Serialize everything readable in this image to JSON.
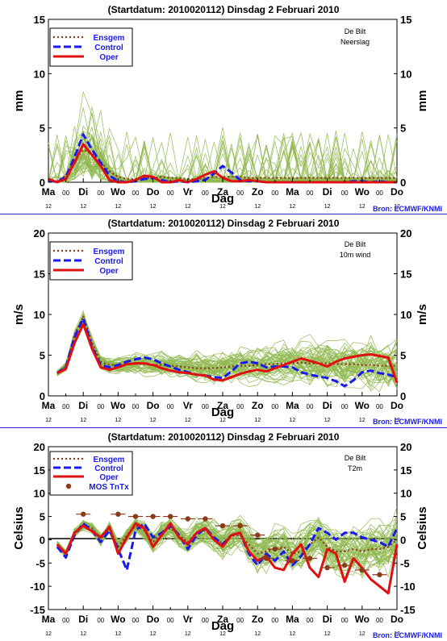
{
  "colors": {
    "ensemble": "#8fb84f",
    "ensgem": "#8b3a1a",
    "control": "#1a1aee",
    "oper": "#e01010",
    "mos": "#8b3a1a",
    "zero_line": "#000000",
    "divider": "#2a2acc",
    "source": "#1a1aee"
  },
  "shared": {
    "title": "(Startdatum: 2010020112)   Dinsdag    2 Februari  2010",
    "station": "De Bilt",
    "source": "Bron: ECMWF/KNMI",
    "xlabel": "Dag",
    "day_labels": [
      "Ma",
      "Di",
      "Wo",
      "Do",
      "Vr",
      "Za",
      "Zo",
      "Ma",
      "Di",
      "Wo",
      "Do"
    ],
    "half_day_labels": [
      "00",
      "00",
      "00",
      "00",
      "00",
      "00",
      "00",
      "00",
      "00",
      "00"
    ],
    "hour_labels": [
      "12",
      "12",
      "12",
      "12",
      "12",
      "12",
      "12",
      "12",
      "12",
      "12",
      "12"
    ]
  },
  "chart_data": [
    {
      "type": "line",
      "variable": "Neerslag",
      "ylabel": "mm",
      "ylim": [
        0,
        15
      ],
      "yticks": [
        0,
        5,
        10,
        15
      ],
      "xlim": [
        0,
        20
      ],
      "legend": [
        "Ensgem",
        "Control",
        "Oper"
      ],
      "legend_placement": "top-left",
      "series": [
        {
          "name": "Ensgem",
          "style": "dotted",
          "x": [
            0,
            0.5,
            1,
            1.5,
            2,
            2.5,
            3,
            3.5,
            4,
            4.5,
            5,
            5.5,
            6,
            6.5,
            7,
            7.5,
            8,
            8.5,
            9,
            9.5,
            10,
            10.5,
            11,
            11.5,
            12,
            12.5,
            13,
            13.5,
            14,
            14.5,
            15,
            15.5,
            16,
            16.5,
            17,
            17.5,
            18,
            18.5,
            19,
            19.5,
            20
          ],
          "values": [
            0.3,
            0.1,
            0.6,
            2.0,
            3.0,
            2.6,
            1.9,
            1.0,
            0.5,
            0.3,
            0.3,
            0.4,
            0.4,
            0.5,
            0.4,
            0.4,
            0.3,
            0.3,
            0.4,
            0.5,
            0.5,
            0.5,
            0.5,
            0.4,
            0.4,
            0.4,
            0.4,
            0.4,
            0.4,
            0.4,
            0.4,
            0.4,
            0.4,
            0.4,
            0.4,
            0.4,
            0.4,
            0.4,
            0.4,
            0.4,
            0.4
          ]
        },
        {
          "name": "Control",
          "style": "dashed",
          "x": [
            0,
            0.5,
            1,
            1.5,
            2,
            2.5,
            3,
            3.5,
            4,
            4.5,
            5,
            5.5,
            6,
            6.5,
            7,
            7.5,
            8,
            8.5,
            9,
            9.5,
            10,
            10.5,
            11,
            11.5,
            12,
            12.5,
            13,
            13.5,
            14,
            14.5,
            15,
            15.5,
            16,
            16.5,
            17,
            17.5,
            18,
            18.5,
            19,
            19.5,
            20
          ],
          "values": [
            0.2,
            0.0,
            0.5,
            2.3,
            4.4,
            3.0,
            1.8,
            0.6,
            0.1,
            0.0,
            0.1,
            0.3,
            0.4,
            0.2,
            0.0,
            0.1,
            0.0,
            0.1,
            0.2,
            0.8,
            1.5,
            0.9,
            0.2,
            0.1,
            0.1,
            0.0,
            0.0,
            0.0,
            0.0,
            0.0,
            0.0,
            0.0,
            0.0,
            0.0,
            0.0,
            0.1,
            0.1,
            0.0,
            0.1,
            0.0,
            0.0
          ]
        },
        {
          "name": "Oper",
          "style": "solid",
          "x": [
            0,
            0.5,
            1,
            1.5,
            2,
            2.5,
            3,
            3.5,
            4,
            4.5,
            5,
            5.5,
            6,
            6.5,
            7,
            7.5,
            8,
            8.5,
            9,
            9.5,
            10,
            10.5,
            11,
            11.5,
            12,
            12.5,
            13,
            13.5,
            14,
            14.5,
            15,
            15.5,
            16,
            16.5,
            17,
            17.5,
            18,
            18.5,
            19,
            19.5,
            20
          ],
          "values": [
            0.3,
            0.0,
            0.3,
            1.8,
            3.5,
            2.5,
            1.5,
            0.2,
            0.0,
            0.0,
            0.2,
            0.6,
            0.5,
            0.0,
            0.0,
            0.2,
            0.0,
            0.3,
            0.7,
            1.0,
            0.4,
            0.1,
            0.1,
            0.2,
            0.1,
            0.0,
            0.0,
            0.0,
            0.0,
            0.0,
            0.0,
            0.0,
            0.0,
            0.0,
            0.0,
            0.0,
            0.0,
            0.0,
            0.0,
            0.0,
            0.0
          ]
        }
      ]
    },
    {
      "type": "line",
      "variable": "10m wind",
      "ylabel": "m/s",
      "ylim": [
        0,
        20
      ],
      "yticks": [
        0,
        5,
        10,
        15,
        20
      ],
      "xlim": [
        0,
        20
      ],
      "legend": [
        "Ensgem",
        "Control",
        "Oper"
      ],
      "legend_placement": "top-left",
      "series": [
        {
          "name": "Ensgem",
          "style": "dotted",
          "x": [
            0.5,
            1,
            1.5,
            2,
            2.5,
            3,
            3.5,
            4,
            4.5,
            5,
            5.5,
            6,
            6.5,
            7,
            7.5,
            8,
            8.5,
            9,
            9.5,
            10,
            10.5,
            11,
            11.5,
            12,
            12.5,
            13,
            13.5,
            14,
            14.5,
            15,
            15.5,
            16,
            16.5,
            17,
            17.5,
            18,
            18.5,
            19,
            19.5,
            20
          ],
          "values": [
            2.8,
            3.6,
            7.5,
            9.8,
            6.5,
            4.2,
            3.8,
            3.8,
            3.9,
            4.0,
            3.9,
            3.8,
            3.8,
            3.7,
            3.6,
            3.5,
            3.4,
            3.4,
            3.4,
            3.5,
            3.6,
            3.7,
            3.7,
            3.8,
            3.9,
            3.9,
            4.0,
            4.0,
            4.1,
            4.0,
            4.0,
            4.0,
            3.9,
            3.9,
            3.9,
            3.8,
            3.8,
            3.7,
            3.7,
            3.7
          ]
        },
        {
          "name": "Control",
          "style": "dashed",
          "x": [
            0.5,
            1,
            1.5,
            2,
            2.5,
            3,
            3.5,
            4,
            4.5,
            5,
            5.5,
            6,
            6.5,
            7,
            7.5,
            8,
            8.5,
            9,
            9.5,
            10,
            10.5,
            11,
            11.5,
            12,
            12.5,
            13,
            13.5,
            14,
            14.5,
            15,
            15.5,
            16,
            16.5,
            17,
            17.5,
            18,
            18.5,
            19,
            19.5,
            20
          ],
          "values": [
            2.8,
            3.5,
            7.2,
            9.5,
            6.0,
            3.8,
            3.5,
            3.8,
            4.2,
            4.5,
            4.7,
            4.5,
            4.0,
            3.6,
            3.2,
            2.9,
            2.6,
            2.5,
            2.3,
            2.2,
            3.0,
            4.0,
            4.2,
            4.0,
            3.5,
            3.6,
            3.6,
            3.5,
            2.9,
            2.6,
            2.4,
            2.2,
            1.8,
            1.2,
            1.9,
            2.9,
            3.1,
            2.8,
            2.6,
            2.3
          ]
        },
        {
          "name": "Oper",
          "style": "solid",
          "x": [
            0.5,
            1,
            1.5,
            2,
            2.5,
            3,
            3.5,
            4,
            4.5,
            5,
            5.5,
            6,
            6.5,
            7,
            7.5,
            8,
            8.5,
            9,
            9.5,
            10,
            10.5,
            11,
            11.5,
            12,
            12.5,
            13,
            13.5,
            14,
            14.5,
            15,
            15.5,
            16,
            16.5,
            17,
            17.5,
            18,
            18.5,
            19,
            19.5,
            20
          ],
          "values": [
            2.8,
            3.3,
            6.5,
            8.8,
            5.8,
            3.5,
            3.2,
            3.5,
            3.9,
            4.0,
            4.0,
            3.8,
            3.4,
            3.1,
            2.9,
            2.8,
            2.6,
            2.5,
            2.0,
            1.9,
            2.3,
            2.7,
            3.0,
            3.2,
            3.0,
            3.4,
            3.8,
            4.2,
            4.6,
            4.3,
            4.0,
            3.6,
            4.2,
            4.6,
            4.8,
            5.0,
            5.1,
            4.9,
            4.7,
            1.6
          ]
        }
      ]
    },
    {
      "type": "line",
      "variable": "T2m",
      "ylabel": "Celsius",
      "ylim": [
        -15,
        20
      ],
      "yticks": [
        -15,
        -10,
        -5,
        0,
        5,
        10,
        15,
        20
      ],
      "xlim": [
        0,
        20
      ],
      "legend": [
        "Ensgem",
        "Control",
        "Oper",
        "MOS TnTx"
      ],
      "legend_placement": "top-left",
      "series": [
        {
          "name": "Ensgem",
          "style": "dotted",
          "x": [
            0.5,
            1,
            1.5,
            2,
            2.5,
            3,
            3.5,
            4,
            4.5,
            5,
            5.5,
            6,
            6.5,
            7,
            7.5,
            8,
            8.5,
            9,
            9.5,
            10,
            10.5,
            11,
            11.5,
            12,
            12.5,
            13,
            13.5,
            14,
            14.5,
            15,
            15.5,
            16,
            16.5,
            17,
            17.5,
            18,
            18.5,
            19,
            19.5,
            20
          ],
          "values": [
            -1.0,
            -3.0,
            1.5,
            3.3,
            2.5,
            0.2,
            2.5,
            -1.5,
            1.0,
            3.0,
            2.0,
            -0.5,
            1.5,
            2.5,
            1.0,
            -0.5,
            1.5,
            2.0,
            0.5,
            -0.8,
            0.8,
            1.0,
            -1.0,
            -3.0,
            -2.5,
            -2.0,
            -1.5,
            -3.0,
            -2.5,
            -1.0,
            0.5,
            -1.5,
            -2.5,
            -2.5,
            -2.0,
            -2.5,
            -2.0,
            -2.0,
            -1.5,
            0.0
          ]
        },
        {
          "name": "Control",
          "style": "dashed",
          "x": [
            0.5,
            1,
            1.5,
            2,
            2.5,
            3,
            3.5,
            4,
            4.5,
            5,
            5.5,
            6,
            6.5,
            7,
            7.5,
            8,
            8.5,
            9,
            9.5,
            10,
            10.5,
            11,
            11.5,
            12,
            12.5,
            13,
            13.5,
            14,
            14.5,
            15,
            15.5,
            16,
            16.5,
            17,
            17.5,
            18,
            18.5,
            19,
            19.5,
            20
          ],
          "values": [
            -1.5,
            -3.8,
            1.0,
            3.5,
            2.0,
            -0.5,
            2.0,
            -2.0,
            -6.5,
            2.0,
            3.5,
            0.5,
            1.5,
            3.0,
            1.0,
            -2.0,
            1.0,
            2.5,
            0.5,
            -1.0,
            1.0,
            1.5,
            -3.0,
            -5.5,
            -3.0,
            -4.5,
            -2.5,
            -5.5,
            -3.5,
            -1.0,
            2.5,
            1.5,
            0.0,
            1.5,
            1.5,
            0.5,
            0.0,
            -0.5,
            -1.5,
            2.5
          ]
        },
        {
          "name": "Oper",
          "style": "solid",
          "x": [
            0.5,
            1,
            1.5,
            2,
            2.5,
            3,
            3.5,
            4,
            4.5,
            5,
            5.5,
            6,
            6.5,
            7,
            7.5,
            8,
            8.5,
            9,
            9.5,
            10,
            10.5,
            11,
            11.5,
            12,
            12.5,
            13,
            13.5,
            14,
            14.5,
            15,
            15.5,
            16,
            16.5,
            17,
            17.5,
            18,
            18.5,
            19,
            19.5,
            20
          ],
          "values": [
            -1.0,
            -3.0,
            1.5,
            3.0,
            1.8,
            0.5,
            2.8,
            -3.0,
            0.5,
            3.5,
            2.5,
            -1.5,
            1.0,
            3.5,
            0.5,
            -1.0,
            1.5,
            2.5,
            0.0,
            -1.5,
            1.0,
            1.5,
            -2.5,
            -4.5,
            -3.5,
            -6.0,
            -6.5,
            -3.0,
            -1.0,
            -6.0,
            -8.0,
            -2.0,
            -3.0,
            -9.0,
            -4.0,
            -6.0,
            -8.5,
            -10.0,
            -11.5,
            -1.0
          ]
        },
        {
          "name": "MOS TnTx",
          "style": "markers",
          "x": [
            2,
            4,
            5,
            6,
            7,
            8,
            9,
            10,
            11,
            12,
            12.5,
            13,
            14,
            15,
            16,
            17,
            18,
            19
          ],
          "values": [
            5.5,
            5.5,
            5.0,
            5.0,
            5.0,
            4.5,
            4.5,
            3.0,
            3.0,
            1.0,
            -4.0,
            -2.0,
            -4.5,
            -4.0,
            -6.0,
            -5.5,
            -6.5,
            -7.5
          ]
        }
      ]
    }
  ]
}
